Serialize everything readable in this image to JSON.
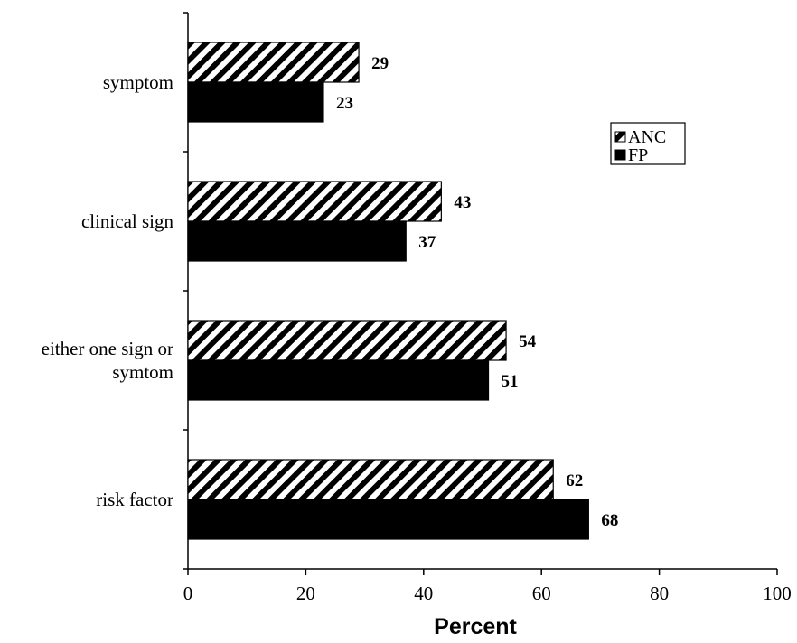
{
  "chart_data": {
    "type": "bar",
    "orientation": "horizontal",
    "categories": [
      "symptom",
      "clinical sign",
      "either one sign or symtom",
      "risk factor"
    ],
    "category_lines": [
      [
        "symptom"
      ],
      [
        "clinical sign"
      ],
      [
        "either one sign or",
        "symtom"
      ],
      [
        "risk factor"
      ]
    ],
    "series": [
      {
        "name": "ANC",
        "values": [
          29,
          43,
          54,
          62
        ],
        "pattern": "diagonal-hatch",
        "color": "#000000"
      },
      {
        "name": "FP",
        "values": [
          23,
          37,
          51,
          68
        ],
        "pattern": "solid",
        "color": "#000000"
      }
    ],
    "xlabel": "Percent",
    "ylabel": "",
    "xlim": [
      0,
      100
    ],
    "xticks": [
      0,
      20,
      40,
      60,
      80,
      100
    ],
    "data_labels": true,
    "grid": false,
    "legend_position": "right"
  }
}
